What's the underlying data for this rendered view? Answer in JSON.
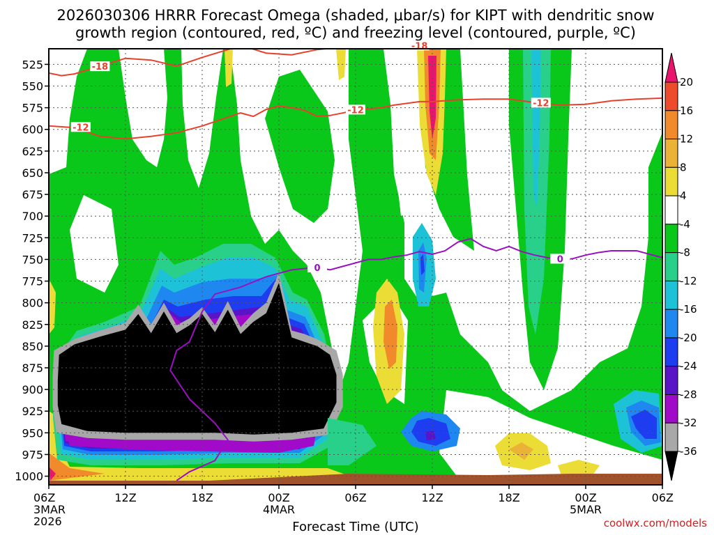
{
  "title_line1": "2026030306 HRRR Forecast Omega (shaded, μbar/s) for KIPT with dendritic snow",
  "title_line2": "growth region (contoured, red, ºC) and freezing level (contoured, purple, ºC)",
  "credit": "coolwx.com/models",
  "chart_data": {
    "type": "heatmap",
    "title": "2026030306 HRRR Forecast Omega (shaded, μbar/s) for KIPT with dendritic snow growth region (contoured, red, ºC) and freezing level (contoured, purple, ºC)",
    "xlabel": "Forecast Time (UTC)",
    "ylabel": "",
    "ylim": [
      1010,
      507
    ],
    "y_ticks": [
      "525",
      "550",
      "575",
      "600",
      "625",
      "650",
      "675",
      "700",
      "725",
      "750",
      "775",
      "800",
      "825",
      "850",
      "875",
      "900",
      "925",
      "950",
      "975",
      "1000"
    ],
    "x_ticks": [
      {
        "l1": "06Z",
        "l2": "3MAR",
        "l3": "2026"
      },
      {
        "l1": "12Z",
        "l2": "",
        "l3": ""
      },
      {
        "l1": "18Z",
        "l2": "",
        "l3": ""
      },
      {
        "l1": "00Z",
        "l2": "4MAR",
        "l3": ""
      },
      {
        "l1": "06Z",
        "l2": "",
        "l3": ""
      },
      {
        "l1": "12Z",
        "l2": "",
        "l3": ""
      },
      {
        "l1": "18Z",
        "l2": "",
        "l3": ""
      },
      {
        "l1": "00Z",
        "l2": "5MAR",
        "l3": ""
      },
      {
        "l1": "06Z",
        "l2": "",
        "l3": ""
      }
    ],
    "x_range_hours": [
      0,
      48
    ],
    "colorbar_labels": [
      "20",
      "16",
      "12",
      "8",
      "4",
      "-4",
      "-8",
      "-12",
      "-16",
      "-20",
      "-24",
      "-28",
      "-32",
      "-36"
    ],
    "colorbar_colors": [
      "#e8146e",
      "#ee4a2c",
      "#f08a2a",
      "#eab236",
      "#ecdc36",
      "#ffffff",
      "#0ac81a",
      "#28d08a",
      "#1ec2d6",
      "#1e88f0",
      "#1e3cf0",
      "#5a14c8",
      "#a00ac8",
      "#a8a8a8",
      "#000000"
    ],
    "dgz_contours": [
      {
        "value": "-18",
        "label": "-18",
        "points": [
          [
            0,
            535
          ],
          [
            1,
            538
          ],
          [
            2,
            536
          ],
          [
            4,
            527
          ],
          [
            6,
            518
          ],
          [
            8,
            520
          ],
          [
            10,
            527
          ],
          [
            12,
            517
          ],
          [
            14,
            508
          ],
          [
            15,
            503
          ],
          [
            17,
            512
          ],
          [
            19,
            514
          ],
          [
            21,
            508
          ],
          [
            23,
            505
          ],
          [
            26,
            505
          ],
          [
            28,
            504
          ],
          [
            30,
            505
          ],
          [
            32,
            505
          ],
          [
            34,
            506
          ],
          [
            36,
            506
          ],
          [
            38,
            506
          ],
          [
            40,
            507
          ],
          [
            42,
            505
          ],
          [
            44,
            503
          ],
          [
            46,
            505
          ],
          [
            48,
            506
          ]
        ]
      },
      {
        "value": "-12",
        "label": "-12",
        "points": [
          [
            0,
            596
          ],
          [
            2,
            598
          ],
          [
            4,
            608
          ],
          [
            6,
            611
          ],
          [
            8,
            608
          ],
          [
            10,
            604
          ],
          [
            12,
            596
          ],
          [
            14,
            586
          ],
          [
            15,
            581
          ],
          [
            16,
            585
          ],
          [
            17,
            577
          ],
          [
            18,
            573
          ],
          [
            19,
            575
          ],
          [
            20,
            578
          ],
          [
            21,
            585
          ],
          [
            22,
            584
          ],
          [
            24,
            578
          ],
          [
            26,
            575
          ],
          [
            27,
            572
          ],
          [
            29,
            568
          ],
          [
            30,
            568
          ],
          [
            32,
            566
          ],
          [
            34,
            565
          ],
          [
            36,
            565
          ],
          [
            38,
            569
          ],
          [
            40,
            572
          ],
          [
            42,
            571
          ],
          [
            44,
            567
          ],
          [
            46,
            565
          ],
          [
            48,
            564
          ]
        ]
      }
    ],
    "freezing_level": {
      "value": "0",
      "label": "0",
      "points": [
        [
          10,
          1005
        ],
        [
          11,
          995
        ],
        [
          13,
          982
        ],
        [
          14,
          958
        ],
        [
          13,
          939
        ],
        [
          11,
          911
        ],
        [
          9.5,
          878
        ],
        [
          10,
          855
        ],
        [
          11,
          845
        ],
        [
          12,
          810
        ],
        [
          13,
          790
        ],
        [
          15,
          782
        ],
        [
          17,
          770
        ],
        [
          19,
          762
        ],
        [
          21,
          759
        ],
        [
          22,
          762
        ],
        [
          23,
          758
        ],
        [
          25,
          750
        ],
        [
          26,
          750
        ],
        [
          27,
          747
        ],
        [
          28,
          745
        ],
        [
          29,
          741
        ],
        [
          30,
          744
        ],
        [
          31,
          740
        ],
        [
          32,
          730
        ],
        [
          33,
          726
        ],
        [
          34,
          735
        ],
        [
          35,
          740
        ],
        [
          36,
          735
        ],
        [
          37,
          741
        ],
        [
          38,
          745
        ],
        [
          39,
          748
        ],
        [
          40,
          751
        ],
        [
          41,
          749
        ],
        [
          42,
          745
        ],
        [
          43,
          742
        ],
        [
          44,
          740
        ],
        [
          46,
          740
        ],
        [
          48,
          748
        ]
      ]
    },
    "black_region": [
      [
        0.8,
        860
      ],
      [
        2,
        848
      ],
      [
        4,
        839
      ],
      [
        6,
        831
      ],
      [
        7,
        813
      ],
      [
        8,
        835
      ],
      [
        9,
        810
      ],
      [
        10,
        835
      ],
      [
        11,
        826
      ],
      [
        12,
        813
      ],
      [
        13,
        834
      ],
      [
        14,
        808
      ],
      [
        15,
        836
      ],
      [
        16,
        822
      ],
      [
        17,
        812
      ],
      [
        18,
        777
      ],
      [
        19,
        840
      ],
      [
        20,
        845
      ],
      [
        21,
        850
      ],
      [
        22,
        860
      ],
      [
        22.5,
        883
      ],
      [
        22.5,
        915
      ],
      [
        21.5,
        945
      ],
      [
        19,
        950
      ],
      [
        16,
        952
      ],
      [
        13,
        950
      ],
      [
        9,
        950
      ],
      [
        6,
        950
      ],
      [
        3,
        948
      ],
      [
        1,
        940
      ],
      [
        0.7,
        918
      ],
      [
        0.7,
        890
      ]
    ],
    "grey_ring": [
      [
        0.4,
        855
      ],
      [
        2,
        842
      ],
      [
        4,
        832
      ],
      [
        6,
        823
      ],
      [
        7,
        802
      ],
      [
        8,
        825
      ],
      [
        9,
        800
      ],
      [
        10,
        826
      ],
      [
        11,
        818
      ],
      [
        12,
        805
      ],
      [
        13,
        826
      ],
      [
        14,
        798
      ],
      [
        15,
        828
      ],
      [
        16,
        812
      ],
      [
        17,
        800
      ],
      [
        18,
        765
      ],
      [
        19,
        832
      ],
      [
        20,
        836
      ],
      [
        21,
        842
      ],
      [
        22.5,
        855
      ],
      [
        23,
        883
      ],
      [
        23,
        920
      ],
      [
        22,
        952
      ],
      [
        19,
        958
      ],
      [
        16,
        960
      ],
      [
        13,
        958
      ],
      [
        9,
        958
      ],
      [
        6,
        958
      ],
      [
        3,
        956
      ],
      [
        0.6,
        950
      ],
      [
        0.3,
        920
      ],
      [
        0.3,
        885
      ]
    ]
  }
}
